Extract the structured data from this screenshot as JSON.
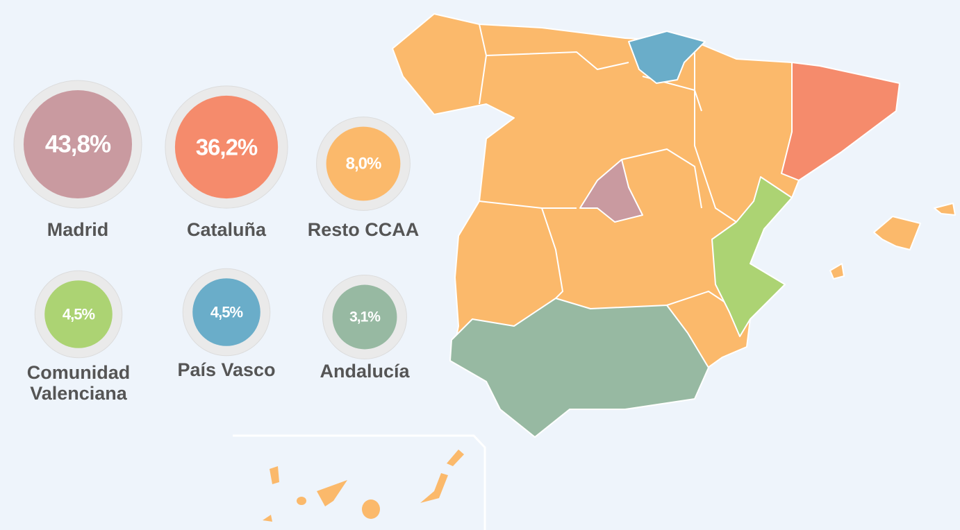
{
  "regions": [
    {
      "name": "Madrid",
      "value": 43.8,
      "value_label": "43,8%",
      "color": "#c99aa0"
    },
    {
      "name": "Cataluña",
      "value": 36.2,
      "value_label": "36,2%",
      "color": "#f58b6c"
    },
    {
      "name": "Resto CCAA",
      "value": 8.0,
      "value_label": "8,0%",
      "color": "#fbb96b"
    },
    {
      "name": "Comunidad Valenciana",
      "value": 4.5,
      "value_label": "4,5%",
      "color": "#acd373"
    },
    {
      "name": "País Vasco",
      "value": 4.5,
      "value_label": "4,5%",
      "color": "#6aadc9"
    },
    {
      "name": "Andalucía",
      "value": 3.1,
      "value_label": "3,1%",
      "color": "#97b9a2"
    }
  ]
}
